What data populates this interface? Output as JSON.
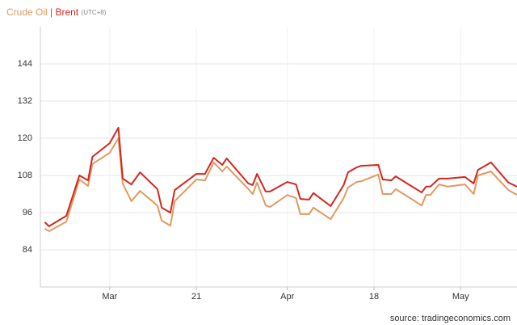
{
  "chart_data": {
    "type": "line",
    "separator": "|",
    "timezone_note": "(UTC+8)",
    "source": "source: tradingeconomics.com",
    "x": [
      1,
      2,
      6,
      9,
      11,
      12,
      16,
      18,
      19,
      21,
      23,
      27,
      28,
      30,
      31,
      36,
      38,
      40,
      42,
      43,
      48,
      49,
      50,
      52,
      53,
      57,
      59,
      60,
      62,
      63,
      67,
      70,
      71,
      73,
      74,
      78,
      79,
      81,
      82,
      88,
      89,
      90,
      92,
      94,
      98,
      100,
      101,
      104,
      108,
      110
    ],
    "xlim": [
      0,
      110
    ],
    "xticks": [
      {
        "value": 16,
        "label": "Mar"
      },
      {
        "value": 36,
        "label": "21"
      },
      {
        "value": 57,
        "label": "Apr"
      },
      {
        "value": 77,
        "label": "18"
      },
      {
        "value": 97,
        "label": "May"
      }
    ],
    "ylim": [
      72,
      156
    ],
    "yticks": [
      84,
      96,
      108,
      120,
      132,
      144
    ],
    "grid": true,
    "series": [
      {
        "name": "Crude Oil",
        "color": "#e09a62",
        "values": [
          90.8,
          90,
          93.1,
          106.7,
          104.6,
          111.7,
          115.3,
          120,
          105.4,
          99.7,
          103,
          98.3,
          93.4,
          91.8,
          99.7,
          106.7,
          106.4,
          112.2,
          109.3,
          110.9,
          103.6,
          102,
          105.7,
          98.3,
          97.8,
          101.7,
          100.7,
          95.5,
          95.5,
          97.6,
          93.9,
          100.7,
          104.1,
          105.9,
          106.1,
          108.3,
          102,
          102,
          103.6,
          98.3,
          101.7,
          101.7,
          105.1,
          104.4,
          105.1,
          102,
          108,
          109.3,
          103.3,
          101.7
        ]
      },
      {
        "name": "Brent",
        "color": "#d3281e",
        "values": [
          92.9,
          91.6,
          95,
          108,
          106.4,
          114,
          118.4,
          123.4,
          107,
          105.1,
          109,
          103.6,
          97.6,
          96,
          103.3,
          108.5,
          108.5,
          113.7,
          111.4,
          113.5,
          105.4,
          104.9,
          108.5,
          102.8,
          102.8,
          105.9,
          105.1,
          100.4,
          100.2,
          102.3,
          98.1,
          104.9,
          109,
          110.6,
          111.1,
          111.4,
          106.7,
          106.4,
          107.7,
          102.5,
          104.4,
          104.4,
          107,
          107,
          107.5,
          105.4,
          109.8,
          112.2,
          105.7,
          104.4
        ]
      }
    ]
  }
}
